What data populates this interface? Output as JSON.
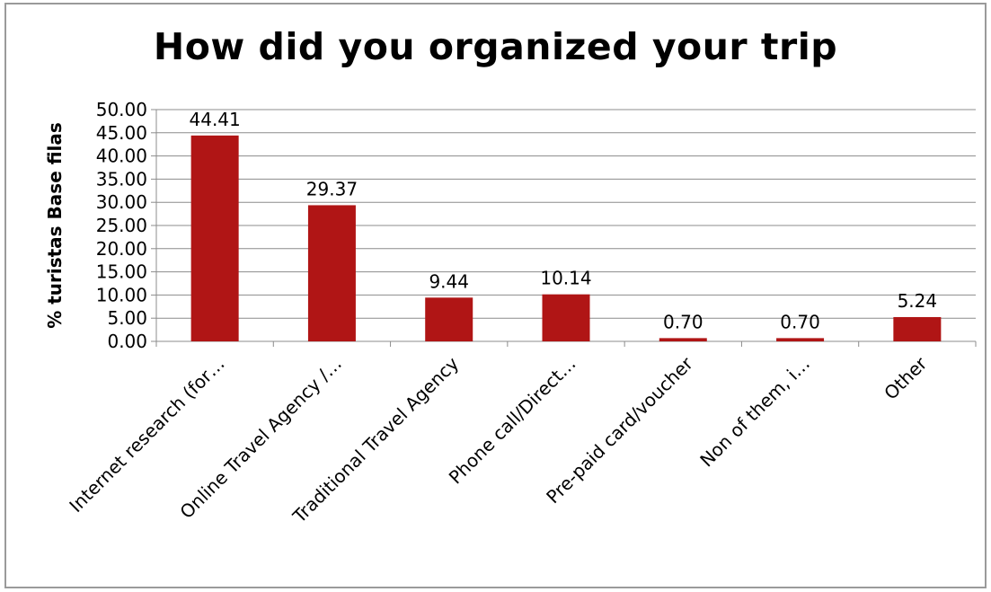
{
  "chart_data": {
    "type": "bar",
    "title": "How did you organized your trip",
    "ylabel": "% turistas Base filas",
    "xlabel": "",
    "categories": [
      "Internet research (for…",
      "Online Travel Agency /…",
      "Traditional Travel Agency",
      "Phone call/Direct…",
      "Pre-paid card/voucher",
      "Non of them, i…",
      "Other"
    ],
    "values": [
      44.41,
      29.37,
      9.44,
      10.14,
      0.7,
      0.7,
      5.24
    ],
    "data_labels": [
      "44.41",
      "29.37",
      "9.44",
      "10.14",
      "0.70",
      "0.70",
      "5.24"
    ],
    "ylim": [
      0,
      50
    ],
    "yticks": [
      "0.00",
      "5.00",
      "10.00",
      "15.00",
      "20.00",
      "25.00",
      "30.00",
      "35.00",
      "40.00",
      "45.00",
      "50.00"
    ],
    "grid": true,
    "legend": "none",
    "bar_color": "#b01515"
  }
}
